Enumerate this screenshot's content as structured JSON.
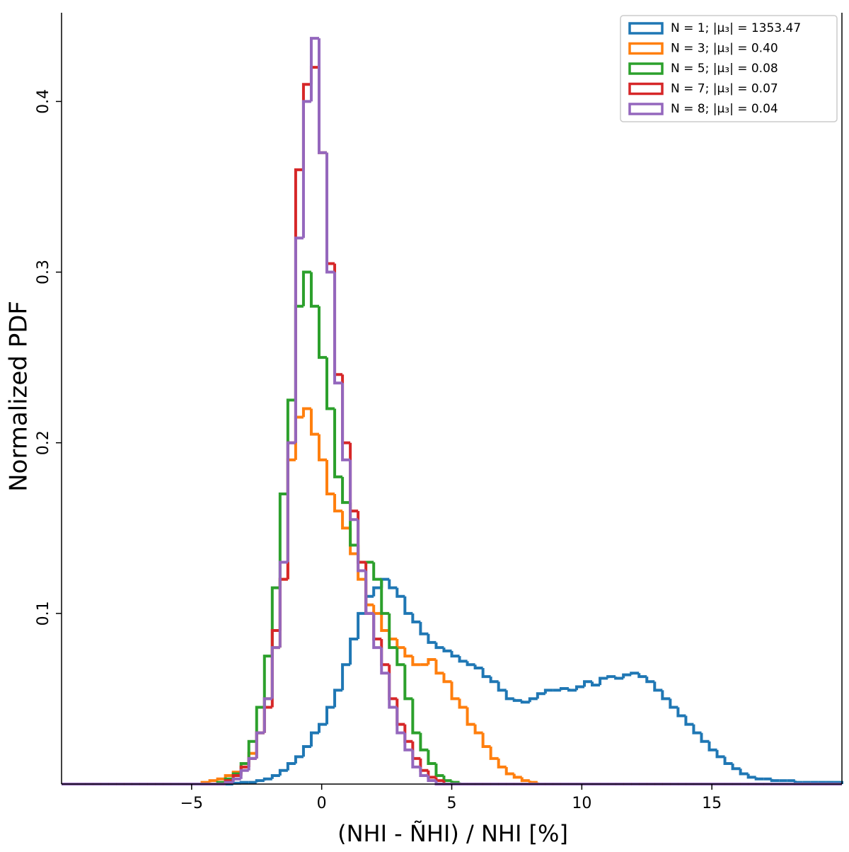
{
  "chart_data": {
    "type": "histogram",
    "xlabel": "(NHI - ÑHI) / NHI [%]",
    "ylabel": "Normalized PDF",
    "xlim": [
      -10,
      20
    ],
    "ylim": [
      0,
      0.452
    ],
    "xticks": [
      {
        "value": -5,
        "label": "−5"
      },
      0,
      5,
      10,
      15
    ],
    "yticks": [
      0.1,
      0.2,
      0.3,
      0.4
    ],
    "legend": "upper right",
    "bins": [
      -10,
      -9.7,
      -9.4,
      -9.1,
      -8.8,
      -8.5,
      -8.2,
      -7.9,
      -7.6,
      -7.3,
      -7,
      -6.7,
      -6.4,
      -6.1,
      -5.8,
      -5.5,
      -5.2,
      -4.9,
      -4.6,
      -4.3,
      -4,
      -3.7,
      -3.4,
      -3.1,
      -2.8,
      -2.5,
      -2.2,
      -1.9,
      -1.6,
      -1.3,
      -1,
      -0.7,
      -0.4,
      -0.1,
      0.2,
      0.5,
      0.8,
      1.1,
      1.4,
      1.7,
      2,
      2.3,
      2.6,
      2.9,
      3.2,
      3.5,
      3.8,
      4.1,
      4.4,
      4.7,
      5,
      5.3,
      5.6,
      5.9,
      6.2,
      6.5,
      6.8,
      7.1,
      7.4,
      7.7,
      8,
      8.3,
      8.6,
      8.9,
      9.2,
      9.5,
      9.8,
      10.1,
      10.4,
      10.7,
      11,
      11.3,
      11.6,
      11.9,
      12.2,
      12.5,
      12.8,
      13.1,
      13.4,
      13.7,
      14,
      14.3,
      14.6,
      14.9,
      15.2,
      15.5,
      15.8,
      16.1,
      16.4,
      16.7,
      17,
      17.3,
      17.6,
      17.9,
      18.2,
      18.5,
      18.8,
      19.1,
      19.4,
      19.7,
      20
    ],
    "series": [
      {
        "name": "N = 1; |μ₃| = 1353.47",
        "color": "#1f77b4",
        "values": [
          0,
          0,
          0,
          0,
          0,
          0,
          0,
          0,
          0,
          0,
          0,
          0,
          0,
          0,
          0,
          0,
          0,
          0,
          0,
          0,
          0,
          0,
          0.0005,
          0.001,
          0.001,
          0.002,
          0.003,
          0.005,
          0.008,
          0.012,
          0.016,
          0.022,
          0.03,
          0.035,
          0.045,
          0.055,
          0.07,
          0.085,
          0.1,
          0.11,
          0.115,
          0.12,
          0.115,
          0.11,
          0.1,
          0.095,
          0.088,
          0.083,
          0.08,
          0.078,
          0.075,
          0.072,
          0.07,
          0.068,
          0.063,
          0.06,
          0.055,
          0.05,
          0.049,
          0.048,
          0.05,
          0.053,
          0.055,
          0.055,
          0.056,
          0.055,
          0.057,
          0.06,
          0.058,
          0.062,
          0.063,
          0.062,
          0.064,
          0.065,
          0.063,
          0.06,
          0.055,
          0.05,
          0.045,
          0.04,
          0.035,
          0.03,
          0.025,
          0.02,
          0.016,
          0.012,
          0.009,
          0.006,
          0.004,
          0.003,
          0.003,
          0.002,
          0.002,
          0.002,
          0.001,
          0.001,
          0.001,
          0.001,
          0.001,
          0.001
        ]
      },
      {
        "name": "N = 3; |μ₃| =  0.40",
        "color": "#ff7f0e",
        "values": [
          0,
          0,
          0,
          0,
          0,
          0,
          0,
          0,
          0,
          0,
          0,
          0,
          0,
          0,
          0,
          0,
          0,
          0,
          0.001,
          0.002,
          0.003,
          0.005,
          0.007,
          0.01,
          0.018,
          0.03,
          0.05,
          0.08,
          0.12,
          0.19,
          0.215,
          0.22,
          0.205,
          0.19,
          0.17,
          0.16,
          0.15,
          0.135,
          0.12,
          0.105,
          0.1,
          0.09,
          0.085,
          0.08,
          0.075,
          0.07,
          0.07,
          0.073,
          0.065,
          0.06,
          0.05,
          0.045,
          0.035,
          0.03,
          0.022,
          0.015,
          0.01,
          0.006,
          0.004,
          0.002,
          0.001,
          0,
          0,
          0,
          0,
          0,
          0,
          0,
          0,
          0,
          0,
          0,
          0,
          0,
          0,
          0,
          0,
          0,
          0,
          0,
          0,
          0,
          0,
          0,
          0,
          0,
          0,
          0,
          0,
          0,
          0,
          0,
          0,
          0,
          0,
          0,
          0,
          0,
          0,
          0
        ]
      },
      {
        "name": "N = 5; |μ₃| =  0.08",
        "color": "#2ca02c",
        "values": [
          0,
          0,
          0,
          0,
          0,
          0,
          0,
          0,
          0,
          0,
          0,
          0,
          0,
          0,
          0,
          0,
          0,
          0,
          0,
          0,
          0.001,
          0.003,
          0.006,
          0.012,
          0.025,
          0.045,
          0.075,
          0.115,
          0.17,
          0.225,
          0.28,
          0.3,
          0.28,
          0.25,
          0.22,
          0.18,
          0.165,
          0.14,
          0.13,
          0.13,
          0.12,
          0.1,
          0.08,
          0.07,
          0.05,
          0.03,
          0.02,
          0.012,
          0.005,
          0.002,
          0.001,
          0,
          0,
          0,
          0,
          0,
          0,
          0,
          0,
          0,
          0,
          0,
          0,
          0,
          0,
          0,
          0,
          0,
          0,
          0,
          0,
          0,
          0,
          0,
          0,
          0,
          0,
          0,
          0,
          0,
          0,
          0,
          0,
          0,
          0,
          0,
          0,
          0,
          0,
          0,
          0,
          0,
          0,
          0,
          0,
          0,
          0,
          0,
          0,
          0
        ]
      },
      {
        "name": "N = 7; |μ₃| =  0.07",
        "color": "#d62728",
        "values": [
          0,
          0,
          0,
          0,
          0,
          0,
          0,
          0,
          0,
          0,
          0,
          0,
          0,
          0,
          0,
          0,
          0,
          0,
          0,
          0,
          0,
          0.002,
          0.005,
          0.01,
          0.015,
          0.03,
          0.045,
          0.09,
          0.12,
          0.2,
          0.36,
          0.41,
          0.42,
          0.37,
          0.305,
          0.24,
          0.2,
          0.16,
          0.13,
          0.1,
          0.085,
          0.07,
          0.05,
          0.035,
          0.025,
          0.015,
          0.008,
          0.004,
          0.002,
          0,
          0,
          0,
          0,
          0,
          0,
          0,
          0,
          0,
          0,
          0,
          0,
          0,
          0,
          0,
          0,
          0,
          0,
          0,
          0,
          0,
          0,
          0,
          0,
          0,
          0,
          0,
          0,
          0,
          0,
          0,
          0,
          0,
          0,
          0,
          0,
          0,
          0,
          0,
          0,
          0,
          0,
          0,
          0,
          0,
          0,
          0,
          0,
          0,
          0,
          0
        ]
      },
      {
        "name": "N = 8; |μ₃| =  0.04",
        "color": "#9467bd",
        "values": [
          0,
          0,
          0,
          0,
          0,
          0,
          0,
          0,
          0,
          0,
          0,
          0,
          0,
          0,
          0,
          0,
          0,
          0,
          0,
          0,
          0,
          0.001,
          0.003,
          0.008,
          0.015,
          0.03,
          0.05,
          0.08,
          0.13,
          0.2,
          0.32,
          0.4,
          0.437,
          0.37,
          0.3,
          0.235,
          0.19,
          0.155,
          0.125,
          0.1,
          0.08,
          0.065,
          0.045,
          0.03,
          0.02,
          0.01,
          0.005,
          0.002,
          0,
          0,
          0,
          0,
          0,
          0,
          0,
          0,
          0,
          0,
          0,
          0,
          0,
          0,
          0,
          0,
          0,
          0,
          0,
          0,
          0,
          0,
          0,
          0,
          0,
          0,
          0,
          0,
          0,
          0,
          0,
          0,
          0,
          0,
          0,
          0,
          0,
          0,
          0,
          0,
          0,
          0,
          0,
          0,
          0,
          0,
          0,
          0,
          0,
          0,
          0,
          0
        ]
      }
    ]
  }
}
